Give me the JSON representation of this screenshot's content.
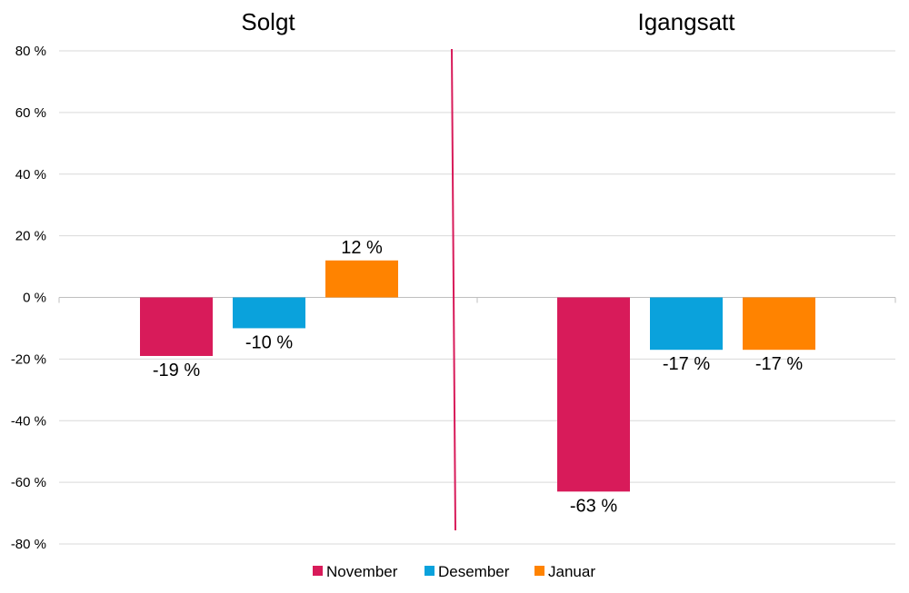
{
  "chart_data": {
    "type": "bar",
    "groups": [
      "Solgt",
      "Igangsatt"
    ],
    "series": [
      {
        "name": "November",
        "color": "#d81b5a",
        "values": [
          -19,
          -63
        ],
        "labels": [
          "-19 %",
          "-63 %"
        ]
      },
      {
        "name": "Desember",
        "color": "#0aa2dc",
        "values": [
          -10,
          -17
        ],
        "labels": [
          "-10 %",
          "-17 %"
        ]
      },
      {
        "name": "Januar",
        "color": "#ff8300",
        "values": [
          12,
          -17
        ],
        "labels": [
          "12 %",
          "-17 %"
        ]
      }
    ],
    "y_ticks": [
      80,
      60,
      40,
      20,
      0,
      -20,
      -40,
      -60,
      -80
    ],
    "y_tick_labels": [
      "80 %",
      "60 %",
      "40 %",
      "20 %",
      "0 %",
      "-20 %",
      "-40 %",
      "-60 %",
      "-80 %"
    ],
    "ylim": [
      -80,
      80
    ],
    "grid": true,
    "legend_position": "bottom",
    "divider_color": "#d81b5a"
  }
}
